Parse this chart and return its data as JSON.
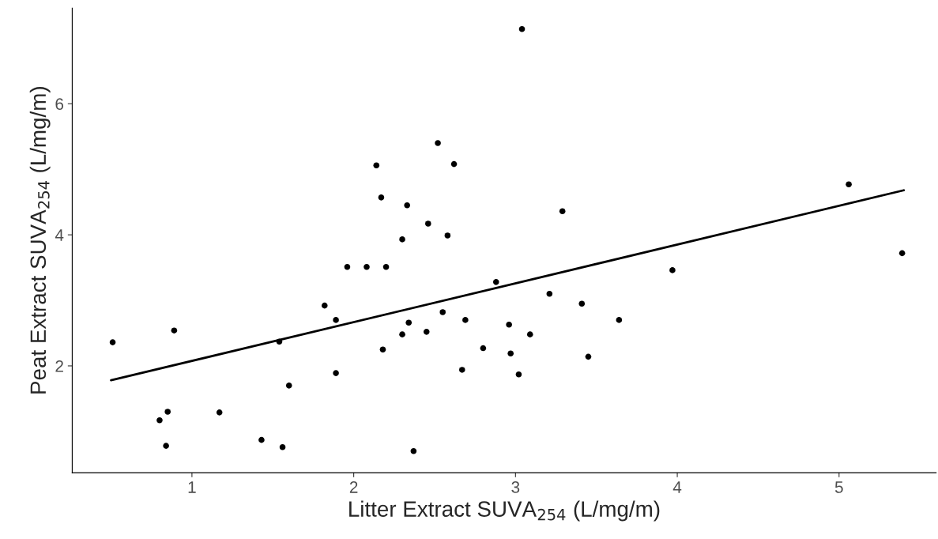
{
  "chart_data": {
    "type": "scatter",
    "xlabel": "Litter Extract SUVA$_{254}$ (L/mg/m)",
    "ylabel": "Peat Extract SUVA$_{254}$ (L/mg/m)",
    "xlim": [
      0.26,
      5.6
    ],
    "ylim": [
      0.37,
      7.46
    ],
    "xticks": [
      1,
      2,
      3,
      4,
      5
    ],
    "yticks": [
      2,
      4,
      6
    ],
    "grid": false,
    "legend": false,
    "series": [
      {
        "marker": "circle",
        "color": "#000000",
        "x": [
          0.51,
          0.89,
          0.8,
          0.85,
          0.84,
          1.17,
          1.43,
          1.54,
          1.56,
          1.6,
          1.82,
          1.89,
          1.89,
          1.96,
          2.08,
          2.14,
          2.17,
          2.18,
          2.2,
          2.3,
          2.3,
          2.33,
          2.34,
          2.37,
          2.45,
          2.46,
          2.52,
          2.55,
          2.58,
          2.62,
          2.67,
          2.69,
          2.8,
          2.88,
          2.96,
          2.97,
          3.02,
          3.04,
          3.09,
          3.21,
          3.29,
          3.41,
          3.45,
          3.64,
          3.97,
          5.06,
          5.39
        ],
        "values": [
          2.36,
          2.54,
          1.17,
          1.3,
          0.78,
          1.29,
          0.87,
          2.37,
          0.76,
          1.7,
          2.92,
          2.7,
          1.89,
          3.51,
          3.51,
          5.06,
          4.57,
          2.25,
          3.51,
          2.48,
          3.93,
          4.45,
          2.66,
          0.7,
          2.52,
          4.17,
          5.4,
          2.82,
          3.99,
          5.08,
          1.94,
          2.7,
          2.27,
          3.28,
          2.63,
          2.19,
          1.87,
          7.14,
          2.48,
          3.1,
          4.36,
          2.95,
          2.14,
          2.7,
          3.46,
          4.77,
          3.72
        ]
      },
      {
        "type": "line",
        "color": "#000000",
        "x": [
          0.5,
          5.4
        ],
        "values": [
          1.78,
          4.68
        ],
        "line_style": "solid"
      }
    ]
  }
}
